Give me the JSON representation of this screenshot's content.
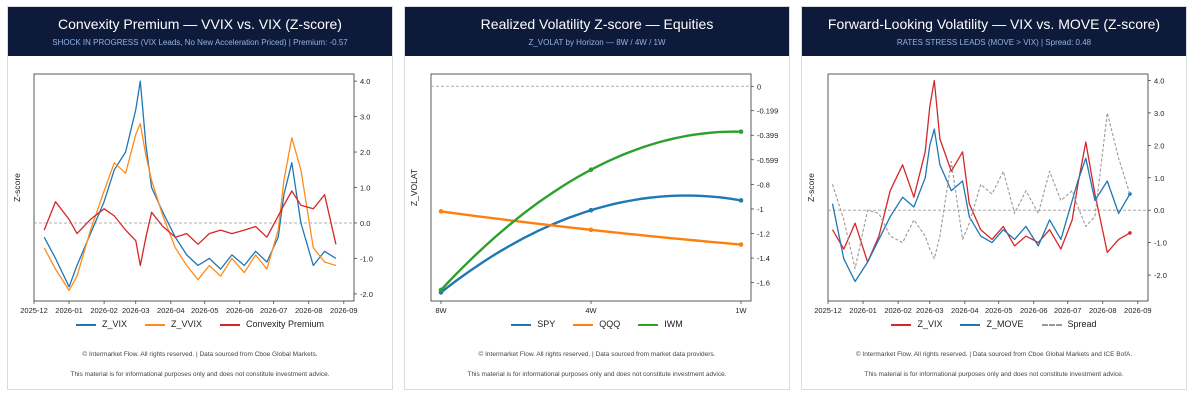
{
  "panels": [
    {
      "title": "Convexity Premium — VVIX vs. VIX (Z-score)",
      "subtitle": "SHOCK IN PROGRESS (VIX Leads, No New Acceleration Priced)  |  Premium: -0.57",
      "footer_source": "© Intermarket Flow. All rights reserved.  |  Data sourced from Cboe Global Markets.",
      "footer_disclaimer": "This material is for informational purposes only and does not constitute investment advice.",
      "legend": [
        {
          "label": "Z_VIX",
          "color": "#1f77b4",
          "dash": false
        },
        {
          "label": "Z_VVIX",
          "color": "#ff8c1a",
          "dash": false
        },
        {
          "label": "Convexity Premium",
          "color": "#d62728",
          "dash": false
        }
      ]
    },
    {
      "title": "Realized Volatility Z-score — Equities",
      "subtitle": "Z_VOLAT by Horizon — 8W / 4W / 1W",
      "footer_source": "© Intermarket Flow. All rights reserved.  |  Data sourced from market data providers.",
      "footer_disclaimer": "This material is for informational purposes only and does not constitute investment advice.",
      "legend": [
        {
          "label": "SPY",
          "color": "#1f77b4",
          "dash": false
        },
        {
          "label": "QQQ",
          "color": "#ff7f0e",
          "dash": false
        },
        {
          "label": "IWM",
          "color": "#2ca02c",
          "dash": false
        }
      ]
    },
    {
      "title": "Forward-Looking Volatility — VIX vs. MOVE (Z-score)",
      "subtitle": "RATES STRESS LEADS (MOVE > VIX)  |  Spread: 0.48",
      "footer_source": "© Intermarket Flow. All rights reserved.  |  Data sourced from Cboe Global Markets and ICE BofA.",
      "footer_disclaimer": "This material is for informational purposes only and does not constitute investment advice.",
      "legend": [
        {
          "label": "Z_VIX",
          "color": "#d62728",
          "dash": false
        },
        {
          "label": "Z_MOVE",
          "color": "#1f77b4",
          "dash": false
        },
        {
          "label": "Spread",
          "color": "#999999",
          "dash": true
        }
      ]
    }
  ],
  "chart_data": [
    {
      "type": "line",
      "title": "Convexity Premium — VVIX vs. VIX (Z-score)",
      "ylabel": "Z-score",
      "xlabel": "",
      "y_axis_side": "right",
      "ylim": [
        -2.2,
        4.2
      ],
      "yticks": [
        -2.0,
        -1.0,
        0.0,
        1.0,
        2.0,
        3.0,
        4.0
      ],
      "xlim": [
        "2025-12-01",
        "2026-09-10"
      ],
      "xticks": [
        "2025-12",
        "2026-01",
        "2026-02",
        "2026-03",
        "2026-04",
        "2026-05",
        "2026-06",
        "2026-07",
        "2026-08",
        "2026-09"
      ],
      "reference_line": 0.0,
      "series": [
        {
          "name": "Z_VIX",
          "color": "#1f77b4",
          "points": [
            [
              "2025-12-10",
              -0.4
            ],
            [
              "2025-12-20",
              -1.0
            ],
            [
              "2026-01-01",
              -1.8
            ],
            [
              "2026-01-08",
              -1.2
            ],
            [
              "2026-01-20",
              -0.3
            ],
            [
              "2026-02-01",
              0.6
            ],
            [
              "2026-02-10",
              1.5
            ],
            [
              "2026-02-20",
              2.0
            ],
            [
              "2026-03-01",
              3.2
            ],
            [
              "2026-03-05",
              4.0
            ],
            [
              "2026-03-10",
              2.2
            ],
            [
              "2026-03-15",
              1.0
            ],
            [
              "2026-03-25",
              0.3
            ],
            [
              "2026-04-05",
              -0.4
            ],
            [
              "2026-04-15",
              -0.9
            ],
            [
              "2026-04-25",
              -1.2
            ],
            [
              "2026-05-05",
              -1.0
            ],
            [
              "2026-05-15",
              -1.3
            ],
            [
              "2026-05-25",
              -0.9
            ],
            [
              "2026-06-05",
              -1.2
            ],
            [
              "2026-06-15",
              -0.8
            ],
            [
              "2026-06-25",
              -1.1
            ],
            [
              "2026-07-05",
              -0.4
            ],
            [
              "2026-07-10",
              0.8
            ],
            [
              "2026-07-17",
              1.7
            ],
            [
              "2026-07-25",
              0.0
            ],
            [
              "2026-08-05",
              -1.2
            ],
            [
              "2026-08-15",
              -0.8
            ],
            [
              "2026-08-25",
              -1.0
            ]
          ]
        },
        {
          "name": "Z_VVIX",
          "color": "#ff8c1a",
          "points": [
            [
              "2025-12-10",
              -0.7
            ],
            [
              "2025-12-20",
              -1.3
            ],
            [
              "2026-01-01",
              -1.9
            ],
            [
              "2026-01-08",
              -1.5
            ],
            [
              "2026-01-20",
              -0.2
            ],
            [
              "2026-02-01",
              0.9
            ],
            [
              "2026-02-10",
              1.7
            ],
            [
              "2026-02-20",
              1.4
            ],
            [
              "2026-03-01",
              2.5
            ],
            [
              "2026-03-05",
              2.8
            ],
            [
              "2026-03-10",
              1.9
            ],
            [
              "2026-03-15",
              1.2
            ],
            [
              "2026-03-25",
              0.2
            ],
            [
              "2026-04-05",
              -0.7
            ],
            [
              "2026-04-15",
              -1.2
            ],
            [
              "2026-04-25",
              -1.6
            ],
            [
              "2026-05-05",
              -1.2
            ],
            [
              "2026-05-15",
              -1.5
            ],
            [
              "2026-05-25",
              -1.0
            ],
            [
              "2026-06-05",
              -1.4
            ],
            [
              "2026-06-15",
              -0.9
            ],
            [
              "2026-06-25",
              -1.3
            ],
            [
              "2026-07-05",
              -0.2
            ],
            [
              "2026-07-10",
              1.2
            ],
            [
              "2026-07-17",
              2.4
            ],
            [
              "2026-07-25",
              1.5
            ],
            [
              "2026-08-05",
              -0.7
            ],
            [
              "2026-08-15",
              -1.1
            ],
            [
              "2026-08-25",
              -1.2
            ]
          ]
        },
        {
          "name": "Convexity Premium",
          "color": "#d62728",
          "points": [
            [
              "2025-12-10",
              -0.2
            ],
            [
              "2025-12-20",
              0.6
            ],
            [
              "2026-01-01",
              0.1
            ],
            [
              "2026-01-08",
              -0.3
            ],
            [
              "2026-01-20",
              0.1
            ],
            [
              "2026-02-01",
              0.4
            ],
            [
              "2026-02-10",
              0.2
            ],
            [
              "2026-02-20",
              -0.2
            ],
            [
              "2026-03-01",
              -0.5
            ],
            [
              "2026-03-05",
              -1.2
            ],
            [
              "2026-03-10",
              -0.4
            ],
            [
              "2026-03-15",
              0.3
            ],
            [
              "2026-03-25",
              -0.1
            ],
            [
              "2026-04-05",
              -0.4
            ],
            [
              "2026-04-15",
              -0.3
            ],
            [
              "2026-04-25",
              -0.6
            ],
            [
              "2026-05-05",
              -0.3
            ],
            [
              "2026-05-15",
              -0.2
            ],
            [
              "2026-05-25",
              -0.3
            ],
            [
              "2026-06-05",
              -0.2
            ],
            [
              "2026-06-15",
              -0.1
            ],
            [
              "2026-06-25",
              -0.4
            ],
            [
              "2026-07-05",
              0.2
            ],
            [
              "2026-07-10",
              0.5
            ],
            [
              "2026-07-17",
              0.9
            ],
            [
              "2026-07-25",
              0.5
            ],
            [
              "2026-08-05",
              0.4
            ],
            [
              "2026-08-15",
              0.8
            ],
            [
              "2026-08-25",
              -0.6
            ]
          ]
        }
      ]
    },
    {
      "type": "line",
      "title": "Realized Volatility Z-score — Equities",
      "ylabel": "Z_VOLAT",
      "xlabel": "",
      "y_axis_side": "right",
      "ylim": [
        -1.75,
        0.1
      ],
      "yticks": [
        0.0,
        -0.199,
        -0.399,
        -0.599,
        -0.8,
        -1.0,
        -1.2,
        -1.4,
        -1.6
      ],
      "categories": [
        "8W",
        "4W",
        "1W"
      ],
      "reference_line": 0.0,
      "series": [
        {
          "name": "SPY",
          "color": "#1f77b4",
          "values": [
            -1.68,
            -1.01,
            -0.93
          ]
        },
        {
          "name": "QQQ",
          "color": "#ff7f0e",
          "values": [
            -1.02,
            -1.17,
            -1.29
          ]
        },
        {
          "name": "IWM",
          "color": "#2ca02c",
          "values": [
            -1.66,
            -0.68,
            -0.37
          ]
        }
      ]
    },
    {
      "type": "line",
      "title": "Forward-Looking Volatility — VIX vs. MOVE (Z-score)",
      "ylabel": "Z-score",
      "xlabel": "",
      "y_axis_side": "right",
      "ylim": [
        -2.8,
        4.2
      ],
      "yticks": [
        -2.0,
        -1.0,
        0.0,
        1.0,
        2.0,
        3.0,
        4.0
      ],
      "xlim": [
        "2025-12-01",
        "2026-09-10"
      ],
      "xticks": [
        "2025-12",
        "2026-01",
        "2026-02",
        "2026-03",
        "2026-04",
        "2026-05",
        "2026-06",
        "2026-07",
        "2026-08",
        "2026-09"
      ],
      "reference_line": 0.0,
      "series": [
        {
          "name": "Z_VIX",
          "color": "#d62728",
          "points": [
            [
              "2025-12-05",
              -0.6
            ],
            [
              "2025-12-15",
              -1.2
            ],
            [
              "2025-12-25",
              -0.4
            ],
            [
              "2026-01-05",
              -1.6
            ],
            [
              "2026-01-15",
              -0.8
            ],
            [
              "2026-01-25",
              0.6
            ],
            [
              "2026-02-05",
              1.4
            ],
            [
              "2026-02-15",
              0.4
            ],
            [
              "2026-02-25",
              1.8
            ],
            [
              "2026-03-01",
              3.2
            ],
            [
              "2026-03-05",
              4.0
            ],
            [
              "2026-03-10",
              2.2
            ],
            [
              "2026-03-20",
              1.2
            ],
            [
              "2026-03-30",
              1.8
            ],
            [
              "2026-04-05",
              0.2
            ],
            [
              "2026-04-15",
              -0.6
            ],
            [
              "2026-04-25",
              -0.9
            ],
            [
              "2026-05-05",
              -0.5
            ],
            [
              "2026-05-15",
              -1.1
            ],
            [
              "2026-05-25",
              -0.8
            ],
            [
              "2026-06-05",
              -1.0
            ],
            [
              "2026-06-15",
              -0.6
            ],
            [
              "2026-06-25",
              -1.2
            ],
            [
              "2026-07-05",
              -0.3
            ],
            [
              "2026-07-10",
              0.8
            ],
            [
              "2026-07-17",
              2.1
            ],
            [
              "2026-07-25",
              0.5
            ],
            [
              "2026-08-05",
              -1.3
            ],
            [
              "2026-08-15",
              -0.9
            ],
            [
              "2026-08-25",
              -0.7
            ]
          ]
        },
        {
          "name": "Z_MOVE",
          "color": "#1f77b4",
          "points": [
            [
              "2025-12-05",
              0.2
            ],
            [
              "2025-12-15",
              -1.5
            ],
            [
              "2025-12-25",
              -2.2
            ],
            [
              "2026-01-05",
              -1.6
            ],
            [
              "2026-01-15",
              -0.9
            ],
            [
              "2026-01-25",
              -0.2
            ],
            [
              "2026-02-05",
              0.4
            ],
            [
              "2026-02-15",
              0.1
            ],
            [
              "2026-02-25",
              1.0
            ],
            [
              "2026-03-01",
              2.0
            ],
            [
              "2026-03-05",
              2.5
            ],
            [
              "2026-03-10",
              1.4
            ],
            [
              "2026-03-20",
              0.6
            ],
            [
              "2026-03-30",
              0.9
            ],
            [
              "2026-04-05",
              -0.2
            ],
            [
              "2026-04-15",
              -0.8
            ],
            [
              "2026-04-25",
              -1.0
            ],
            [
              "2026-05-05",
              -0.6
            ],
            [
              "2026-05-15",
              -0.9
            ],
            [
              "2026-05-25",
              -0.5
            ],
            [
              "2026-06-05",
              -1.1
            ],
            [
              "2026-06-15",
              -0.3
            ],
            [
              "2026-06-25",
              -0.9
            ],
            [
              "2026-07-05",
              0.3
            ],
            [
              "2026-07-10",
              0.9
            ],
            [
              "2026-07-17",
              1.6
            ],
            [
              "2026-07-25",
              0.3
            ],
            [
              "2026-08-05",
              0.9
            ],
            [
              "2026-08-15",
              -0.1
            ],
            [
              "2026-08-25",
              0.5
            ]
          ]
        },
        {
          "name": "Spread",
          "color": "#999999",
          "points": [
            [
              "2025-12-05",
              0.8
            ],
            [
              "2025-12-15",
              -0.3
            ],
            [
              "2025-12-25",
              -1.8
            ],
            [
              "2026-01-05",
              0.0
            ],
            [
              "2026-01-15",
              -0.1
            ],
            [
              "2026-01-25",
              -0.8
            ],
            [
              "2026-02-05",
              -1.0
            ],
            [
              "2026-02-15",
              -0.3
            ],
            [
              "2026-02-25",
              -0.8
            ],
            [
              "2026-03-01",
              -1.2
            ],
            [
              "2026-03-05",
              -1.5
            ],
            [
              "2026-03-10",
              -0.8
            ],
            [
              "2026-03-20",
              1.5
            ],
            [
              "2026-03-30",
              -0.9
            ],
            [
              "2026-04-05",
              -0.4
            ],
            [
              "2026-04-15",
              0.8
            ],
            [
              "2026-04-25",
              0.5
            ],
            [
              "2026-05-05",
              1.2
            ],
            [
              "2026-05-15",
              -0.1
            ],
            [
              "2026-05-25",
              0.6
            ],
            [
              "2026-06-05",
              -0.1
            ],
            [
              "2026-06-15",
              1.2
            ],
            [
              "2026-06-25",
              0.3
            ],
            [
              "2026-07-05",
              0.6
            ],
            [
              "2026-07-10",
              0.1
            ],
            [
              "2026-07-17",
              -0.5
            ],
            [
              "2026-07-25",
              -0.2
            ],
            [
              "2026-08-05",
              3.0
            ],
            [
              "2026-08-15",
              1.6
            ],
            [
              "2026-08-25",
              0.5
            ]
          ]
        }
      ]
    }
  ]
}
